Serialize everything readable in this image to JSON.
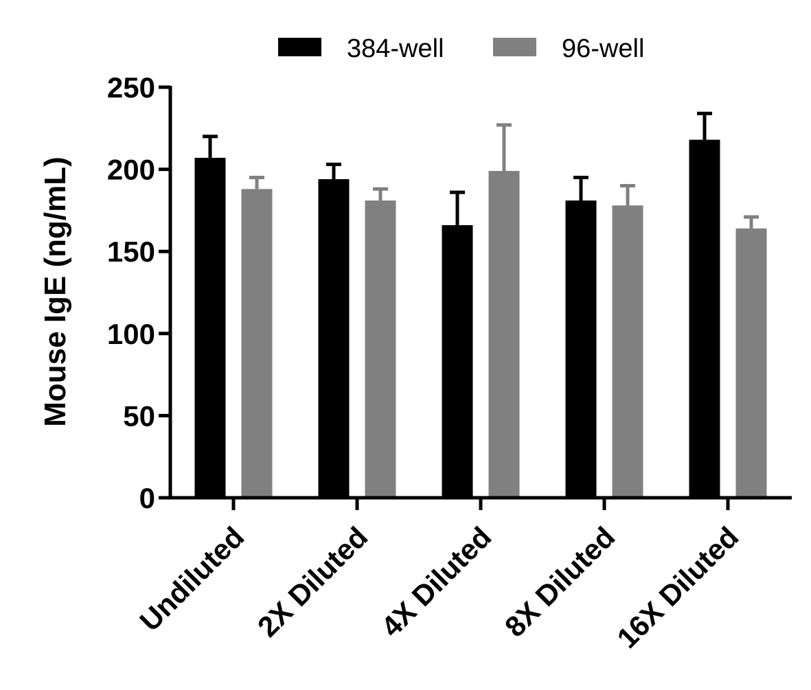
{
  "chart_data": {
    "type": "bar",
    "title": "",
    "xlabel": "",
    "ylabel": "Mouse IgE (ng/mL)",
    "ylim": [
      0,
      250
    ],
    "yticks": [
      "0",
      "50",
      "100",
      "150",
      "200",
      "250"
    ],
    "categories": [
      "Undiluted",
      "2X Diluted",
      "4X Diluted",
      "8X Diluted",
      "16X Diluted"
    ],
    "series": [
      {
        "name": "384-well",
        "color": "#000000",
        "values": [
          207,
          194,
          166,
          181,
          218
        ],
        "errors": [
          13,
          9,
          20,
          14,
          16
        ]
      },
      {
        "name": "96-well",
        "color": "#808080",
        "values": [
          188,
          181,
          199,
          178,
          164
        ],
        "errors": [
          7,
          7,
          28,
          12,
          7
        ]
      }
    ],
    "legend": "top-center",
    "grid": false
  }
}
